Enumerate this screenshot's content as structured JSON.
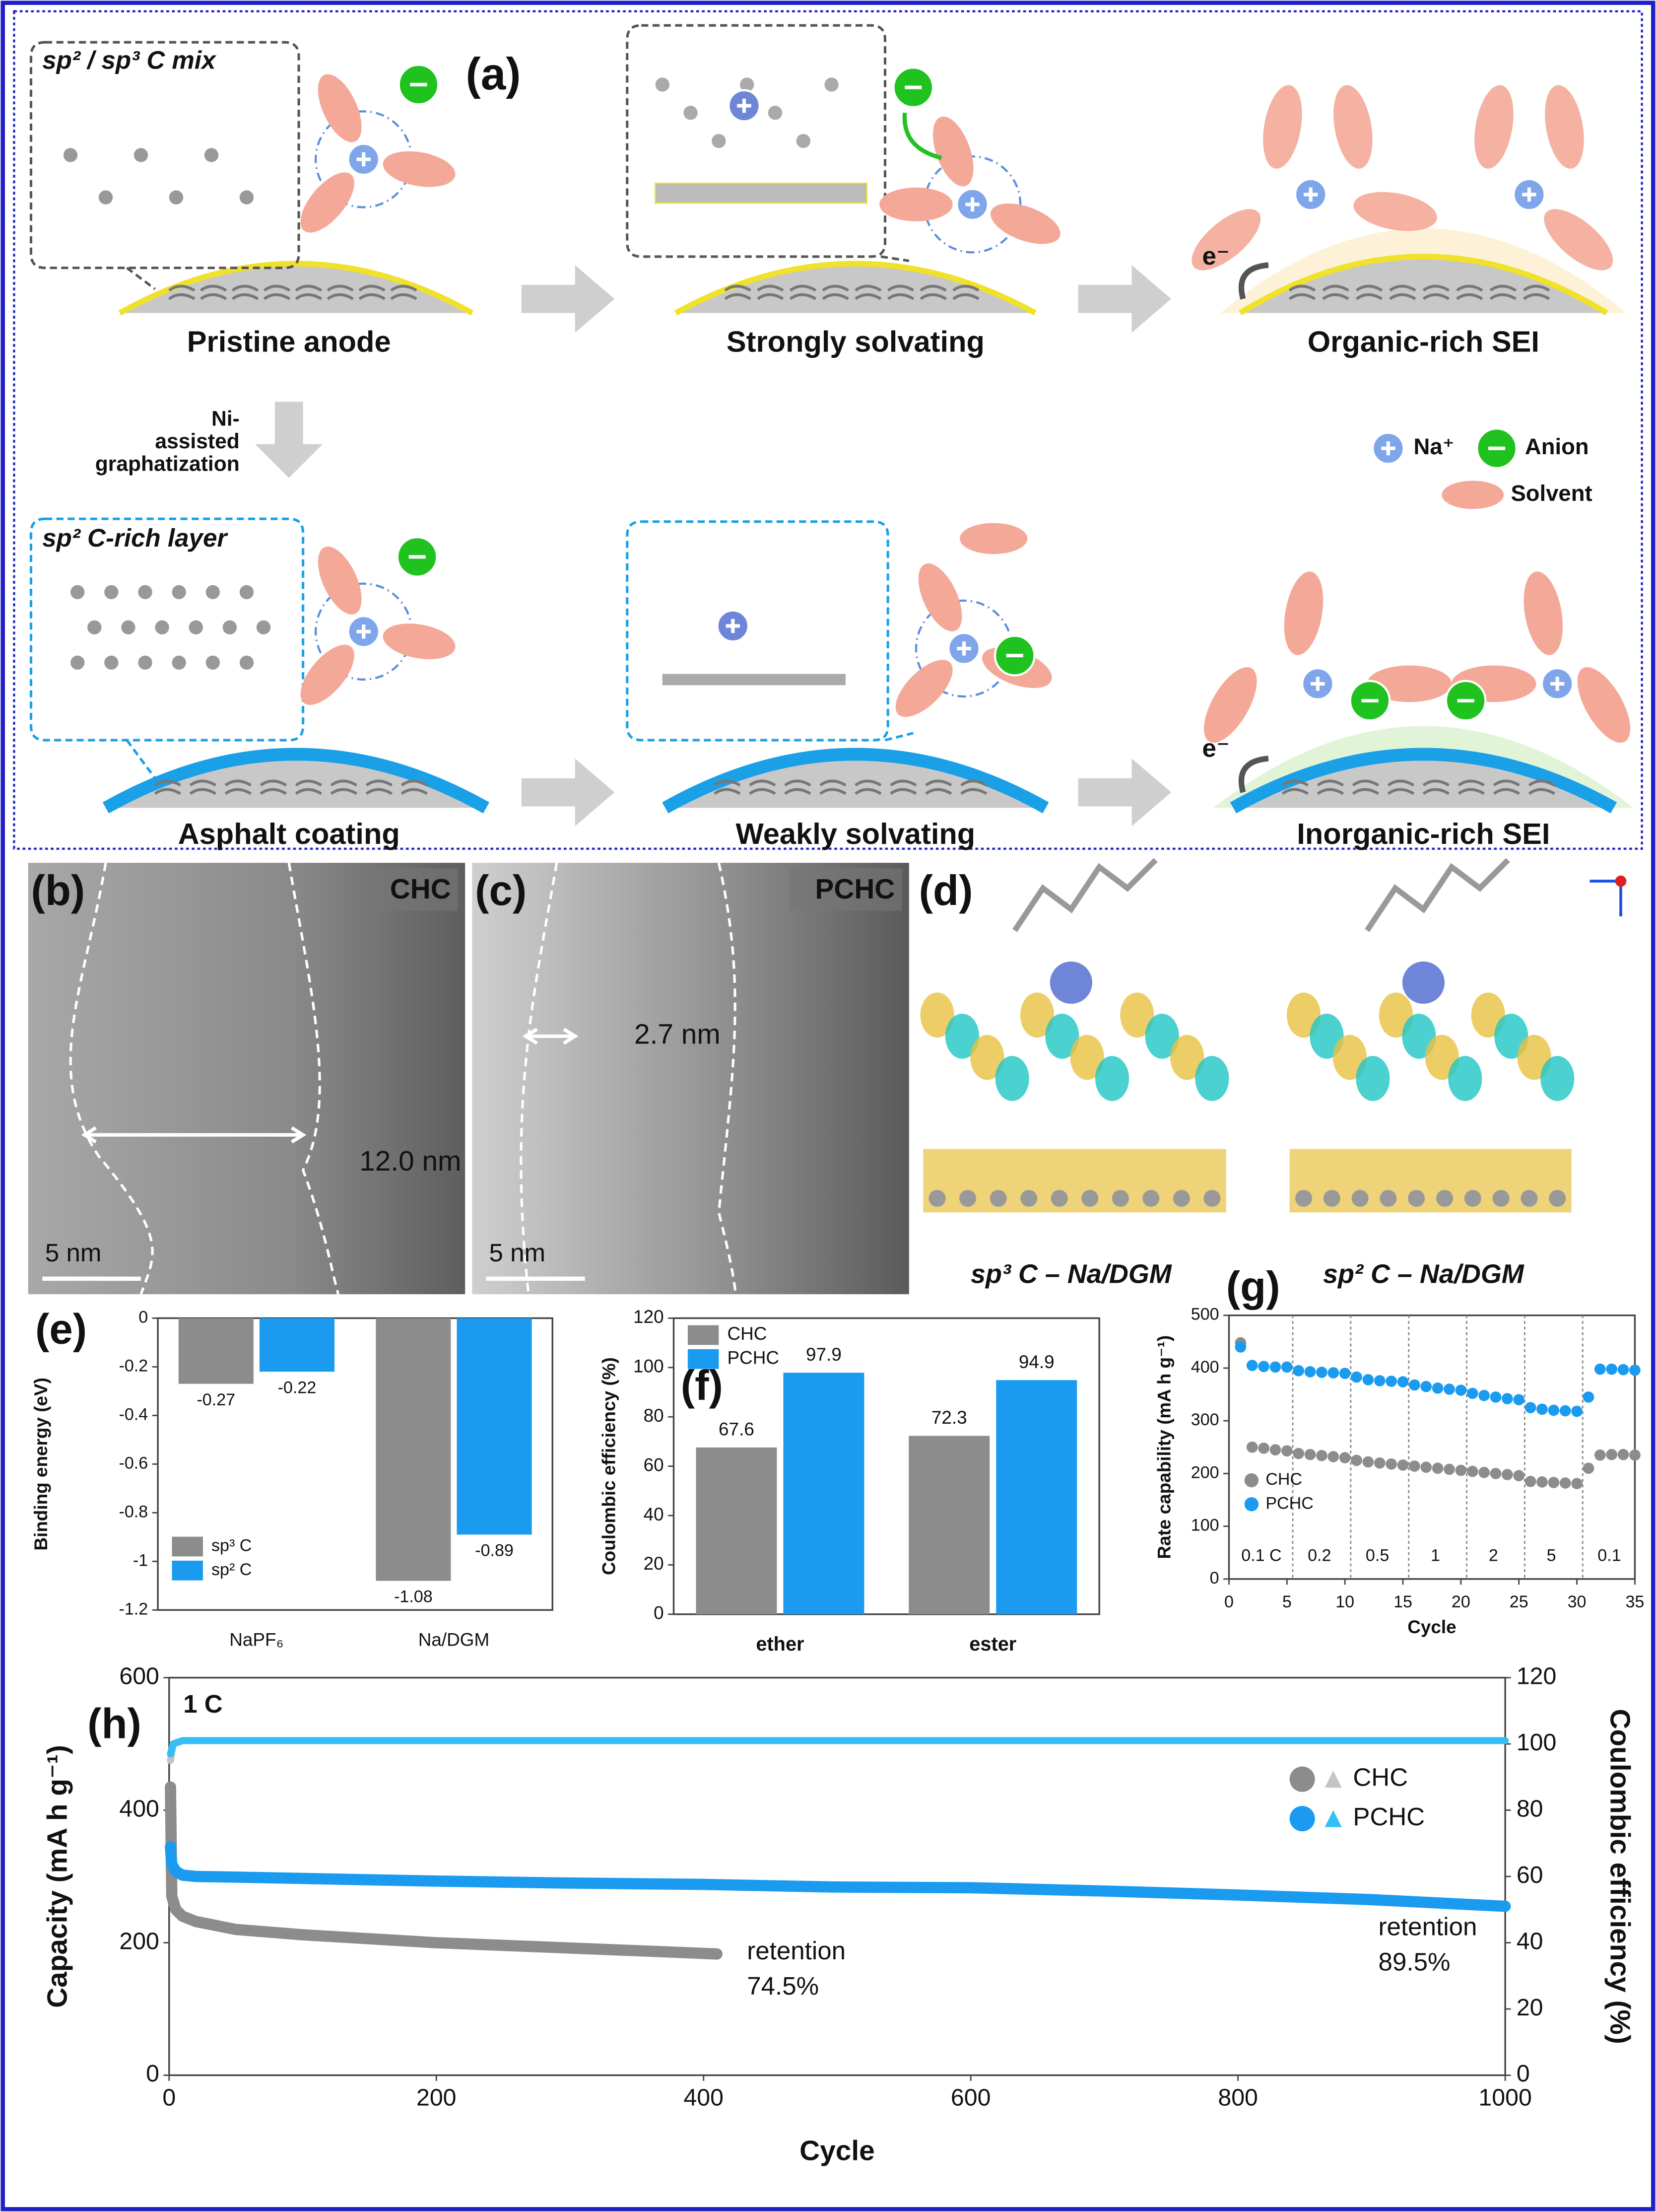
{
  "panel_labels": [
    "(a)",
    "(b)",
    "(c)",
    "(d)",
    "(e)",
    "(f)",
    "(g)",
    "(h)"
  ],
  "diagram": {
    "inset_top": "sp² / sp³ C mix",
    "inset_bottom": "sp² C-rich layer",
    "steps_top": [
      "Pristine anode",
      "Strongly solvating",
      "Organic-rich SEI"
    ],
    "steps_bottom": [
      "Asphalt coating",
      "Weakly solvating",
      "Inorganic-rich SEI"
    ],
    "transition": [
      "Ni-",
      "assisted",
      "graphatization"
    ],
    "legend": [
      "Na⁺",
      "Anion",
      "Solvent"
    ],
    "electron": [
      "e⁻",
      "e⁻"
    ]
  },
  "images": {
    "b": {
      "label": "CHC",
      "thickness": "12.0 nm",
      "scale": "5 nm"
    },
    "c": {
      "label": "PCHC",
      "thickness": "2.7 nm",
      "scale": "5 nm"
    },
    "d": [
      "sp³ C – Na/DGM",
      "sp² C – Na/DGM"
    ]
  },
  "chart_data": [
    {
      "type": "bar",
      "ylabel": "Binding energy (eV)",
      "categories": [
        "NaPF₆",
        "Na/DGM"
      ],
      "series": [
        {
          "name": "sp³ C",
          "color": "#8c8c8c",
          "values": [
            -0.27,
            -1.08
          ]
        },
        {
          "name": "sp² C",
          "color": "#1a9bf0",
          "values": [
            -0.22,
            -0.89
          ]
        }
      ],
      "ylim": [
        -1.2,
        0
      ],
      "yticks": [
        0,
        -0.2,
        -0.4,
        -0.6,
        -0.8,
        -1,
        -1.2
      ],
      "legend": "lower left"
    },
    {
      "type": "bar",
      "ylabel": "Coulombic efficiency (%)",
      "categories": [
        "ether",
        "ester"
      ],
      "series": [
        {
          "name": "CHC",
          "color": "#8c8c8c",
          "values": [
            67.6,
            72.3
          ]
        },
        {
          "name": "PCHC",
          "color": "#1a9bf0",
          "values": [
            97.9,
            94.9
          ]
        }
      ],
      "ylim": [
        0,
        120
      ],
      "yticks": [
        0,
        20,
        40,
        60,
        80,
        100,
        120
      ],
      "legend": "upper left"
    },
    {
      "type": "scatter",
      "xlabel": "Cycle",
      "ylabel": "Rate capability (mA h g⁻¹)",
      "x": [
        1,
        2,
        3,
        4,
        5,
        6,
        7,
        8,
        9,
        10,
        11,
        12,
        13,
        14,
        15,
        16,
        17,
        18,
        19,
        20,
        21,
        22,
        23,
        24,
        25,
        26,
        27,
        28,
        29,
        30,
        31,
        32,
        33,
        34,
        35
      ],
      "series": [
        {
          "name": "CHC",
          "color": "#8c8c8c",
          "values": [
            448,
            250,
            248,
            245,
            243,
            238,
            236,
            234,
            232,
            230,
            225,
            222,
            220,
            218,
            216,
            214,
            212,
            210,
            208,
            206,
            204,
            202,
            200,
            198,
            196,
            185,
            184,
            183,
            182,
            181,
            210,
            235,
            236,
            236,
            235
          ]
        },
        {
          "name": "PCHC",
          "color": "#1a9bf0",
          "values": [
            440,
            405,
            403,
            402,
            402,
            395,
            393,
            392,
            391,
            390,
            383,
            378,
            376,
            375,
            374,
            368,
            365,
            362,
            360,
            358,
            352,
            348,
            345,
            342,
            340,
            325,
            322,
            320,
            319,
            318,
            345,
            398,
            398,
            397,
            396
          ]
        }
      ],
      "xlim": [
        0,
        35
      ],
      "xticks": [
        0,
        5,
        10,
        15,
        20,
        25,
        30,
        35
      ],
      "ylim": [
        0,
        500
      ],
      "yticks": [
        0,
        100,
        200,
        300,
        400,
        500
      ],
      "legend": "lower left",
      "rate_labels": [
        "0.1 C",
        "0.2",
        "0.5",
        "1",
        "2",
        "5",
        "0.1"
      ]
    },
    {
      "type": "line",
      "annotation": "1 C",
      "xlabel": "Cycle",
      "ylabel": "Capacity (mA h g⁻¹)",
      "y2label": "Coulombic efficiency (%)",
      "series": [
        {
          "name": "CHC",
          "color": "#8c8c8c",
          "x": [
            1,
            2,
            5,
            10,
            20,
            50,
            100,
            150,
            200,
            250,
            300,
            350,
            410
          ],
          "values": [
            435,
            270,
            250,
            240,
            232,
            220,
            212,
            206,
            200,
            196,
            192,
            188,
            183
          ]
        },
        {
          "name": "PCHC",
          "color": "#1a9bf0",
          "x": [
            1,
            2,
            5,
            10,
            20,
            50,
            100,
            200,
            300,
            400,
            500,
            600,
            700,
            800,
            900,
            950,
            1000
          ],
          "values": [
            345,
            318,
            308,
            302,
            300,
            299,
            297,
            293,
            290,
            288,
            284,
            283,
            278,
            272,
            265,
            260,
            255
          ]
        },
        {
          "color": "#c4c4c4",
          "axis": "y2",
          "x": [
            1,
            3,
            10,
            50,
            100,
            200,
            300,
            410
          ],
          "values": [
            95,
            100,
            101,
            101,
            101,
            101,
            101,
            101
          ]
        },
        {
          "color": "#33bff5",
          "axis": "y2",
          "x": [
            1,
            3,
            10,
            50,
            100,
            200,
            400,
            600,
            800,
            1000
          ],
          "values": [
            97,
            100,
            101,
            101,
            101,
            101,
            101,
            101,
            101,
            101
          ]
        }
      ],
      "xlim": [
        0,
        1000
      ],
      "xticks": [
        0,
        200,
        400,
        600,
        800,
        1000
      ],
      "ylim": [
        0,
        600
      ],
      "yticks": [
        0,
        200,
        400,
        600
      ],
      "y2lim": [
        0,
        120
      ],
      "y2ticks": [
        0,
        20,
        40,
        60,
        80,
        100,
        120
      ],
      "legend": "upper right",
      "annotations": [
        [
          "retention",
          "74.5%"
        ],
        [
          "retention",
          "89.5%"
        ]
      ]
    }
  ]
}
